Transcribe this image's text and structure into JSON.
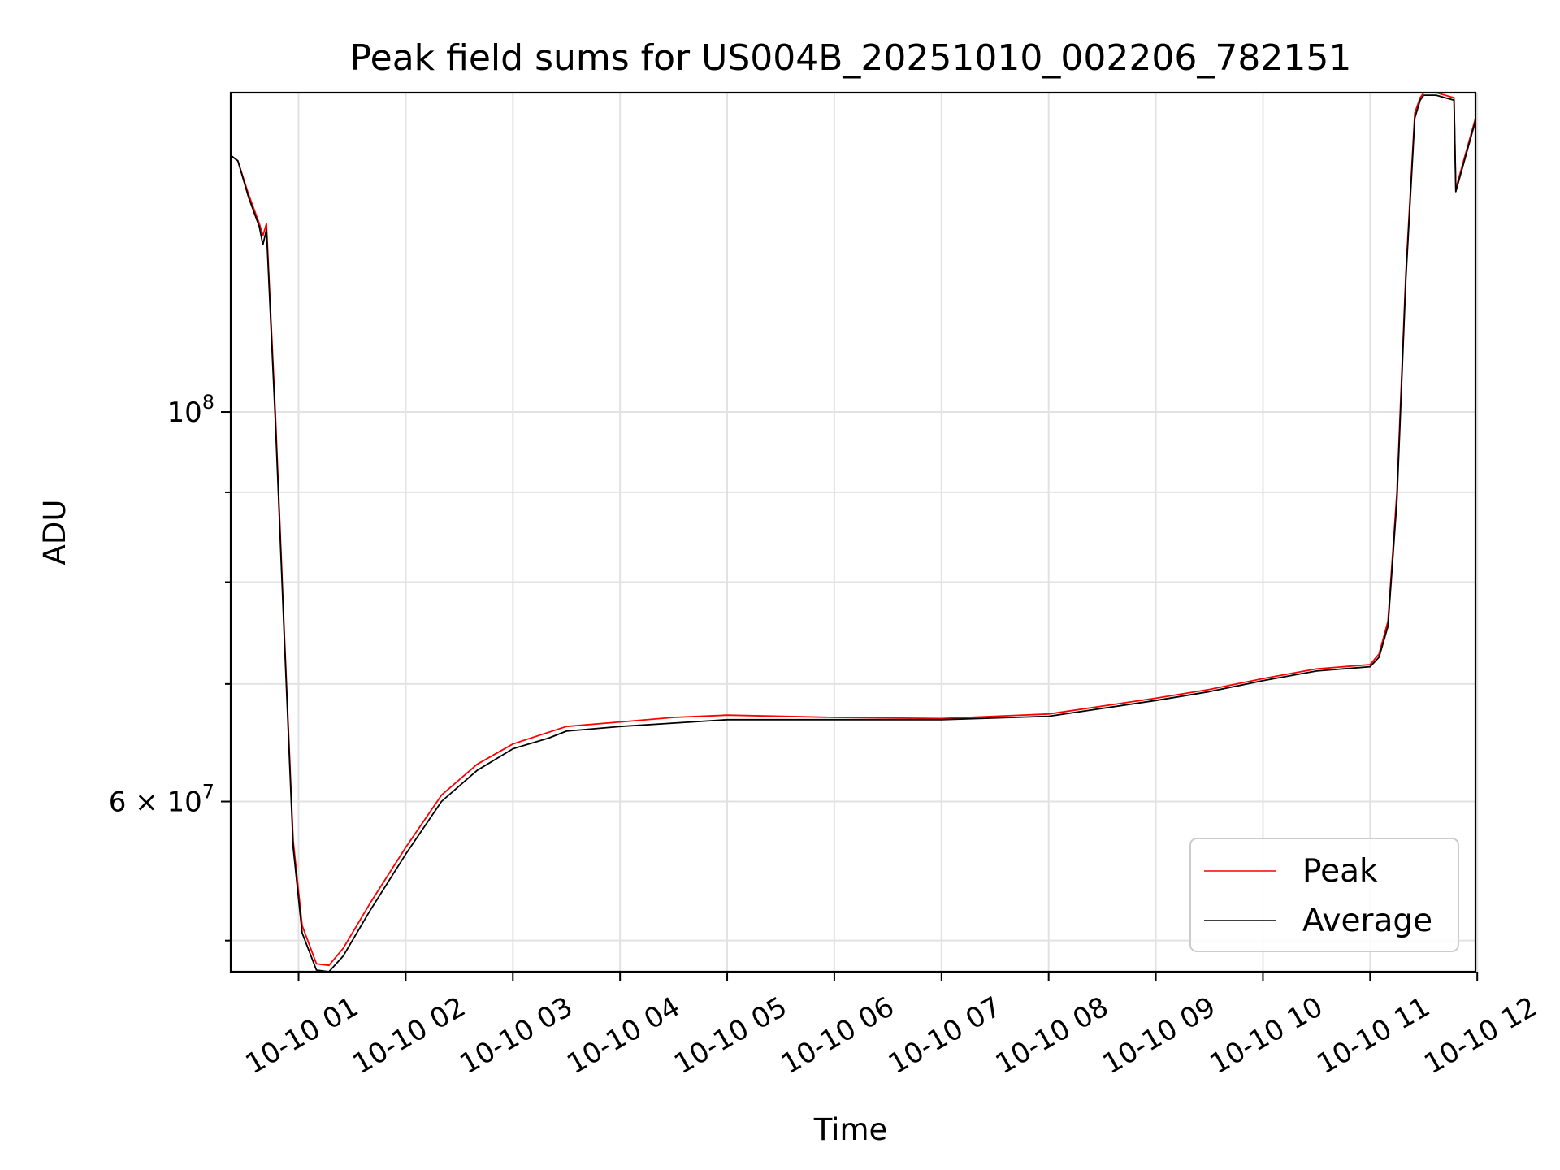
{
  "chart_data": {
    "type": "line",
    "title": "Peak field sums for US004B_20251010_002206_782151",
    "xlabel": "Time",
    "ylabel": "ADU",
    "x_scale": "time",
    "y_scale": "log",
    "grid": true,
    "legend_position": "bottom-right",
    "xlim": [
      "2025-10-10 00:22",
      "2025-10-10 11:59"
    ],
    "ylim": [
      48000000,
      152000000
    ],
    "x_ticks": [
      "2025-10-10 01:00",
      "2025-10-10 02:00",
      "2025-10-10 03:00",
      "2025-10-10 04:00",
      "2025-10-10 05:00",
      "2025-10-10 06:00",
      "2025-10-10 07:00",
      "2025-10-10 08:00",
      "2025-10-10 09:00",
      "2025-10-10 10:00",
      "2025-10-10 11:00",
      "2025-10-10 12:00"
    ],
    "x_tick_labels": [
      "10-10 01",
      "10-10 02",
      "10-10 03",
      "10-10 04",
      "10-10 05",
      "10-10 06",
      "10-10 07",
      "10-10 08",
      "10-10 09",
      "10-10 10",
      "10-10 11",
      "10-10 12"
    ],
    "y_major_ticks": [
      {
        "value": 100000000,
        "label_base": "10",
        "label_exp": "8"
      },
      {
        "value": 60000000,
        "label_base": "6 × 10",
        "label_exp": "7"
      }
    ],
    "y_minor_ticks": [
      50000000,
      70000000,
      80000000,
      90000000
    ],
    "series": [
      {
        "name": "Peak",
        "color": "#ff0000",
        "x": [
          "2025-10-10 00:22",
          "2025-10-10 00:26",
          "2025-10-10 00:32",
          "2025-10-10 00:38",
          "2025-10-10 00:40",
          "2025-10-10 00:42",
          "2025-10-10 00:47",
          "2025-10-10 00:52",
          "2025-10-10 00:57",
          "2025-10-10 01:02",
          "2025-10-10 01:10",
          "2025-10-10 01:17",
          "2025-10-10 01:25",
          "2025-10-10 01:40",
          "2025-10-10 02:00",
          "2025-10-10 02:20",
          "2025-10-10 02:40",
          "2025-10-10 03:00",
          "2025-10-10 03:20",
          "2025-10-10 03:30",
          "2025-10-10 04:00",
          "2025-10-10 04:30",
          "2025-10-10 05:00",
          "2025-10-10 06:00",
          "2025-10-10 07:00",
          "2025-10-10 08:00",
          "2025-10-10 09:00",
          "2025-10-10 09:30",
          "2025-10-10 10:00",
          "2025-10-10 10:30",
          "2025-10-10 11:00",
          "2025-10-10 11:05",
          "2025-10-10 11:10",
          "2025-10-10 11:15",
          "2025-10-10 11:20",
          "2025-10-10 11:25",
          "2025-10-10 11:28",
          "2025-10-10 11:30",
          "2025-10-10 11:37",
          "2025-10-10 11:47",
          "2025-10-10 11:48",
          "2025-10-10 11:59"
        ],
        "y": [
          140000000,
          139000000,
          133000000,
          128000000,
          126000000,
          128000000,
          100000000,
          75000000,
          57000000,
          51000000,
          48500000,
          48400000,
          49500000,
          52500000,
          56500000,
          60500000,
          63000000,
          64700000,
          65700000,
          66200000,
          66600000,
          67000000,
          67200000,
          67000000,
          66900000,
          67300000,
          68700000,
          69500000,
          70500000,
          71400000,
          71800000,
          72800000,
          76000000,
          90000000,
          120000000,
          148000000,
          151000000,
          152000000,
          152000000,
          151000000,
          134000000,
          147000000
        ]
      },
      {
        "name": "Average",
        "color": "#000000",
        "x": [
          "2025-10-10 00:22",
          "2025-10-10 00:26",
          "2025-10-10 00:32",
          "2025-10-10 00:38",
          "2025-10-10 00:40",
          "2025-10-10 00:42",
          "2025-10-10 00:47",
          "2025-10-10 00:52",
          "2025-10-10 00:57",
          "2025-10-10 01:02",
          "2025-10-10 01:10",
          "2025-10-10 01:17",
          "2025-10-10 01:25",
          "2025-10-10 01:40",
          "2025-10-10 02:00",
          "2025-10-10 02:20",
          "2025-10-10 02:40",
          "2025-10-10 03:00",
          "2025-10-10 03:20",
          "2025-10-10 03:30",
          "2025-10-10 04:00",
          "2025-10-10 04:30",
          "2025-10-10 05:00",
          "2025-10-10 06:00",
          "2025-10-10 07:00",
          "2025-10-10 08:00",
          "2025-10-10 09:00",
          "2025-10-10 09:30",
          "2025-10-10 10:00",
          "2025-10-10 10:30",
          "2025-10-10 11:00",
          "2025-10-10 11:05",
          "2025-10-10 11:10",
          "2025-10-10 11:15",
          "2025-10-10 11:20",
          "2025-10-10 11:25",
          "2025-10-10 11:28",
          "2025-10-10 11:30",
          "2025-10-10 11:37",
          "2025-10-10 11:47",
          "2025-10-10 11:48",
          "2025-10-10 11:59"
        ],
        "y": [
          140000000,
          139000000,
          132500000,
          127500000,
          124500000,
          127000000,
          99000000,
          74500000,
          56500000,
          50500000,
          48100000,
          48000000,
          49000000,
          52000000,
          56000000,
          60000000,
          62500000,
          64300000,
          65200000,
          65800000,
          66200000,
          66500000,
          66800000,
          66800000,
          66800000,
          67100000,
          68500000,
          69300000,
          70300000,
          71200000,
          71600000,
          72500000,
          75500000,
          89000000,
          119000000,
          147000000,
          150500000,
          151500000,
          151500000,
          150500000,
          133500000,
          146500000
        ]
      }
    ]
  }
}
